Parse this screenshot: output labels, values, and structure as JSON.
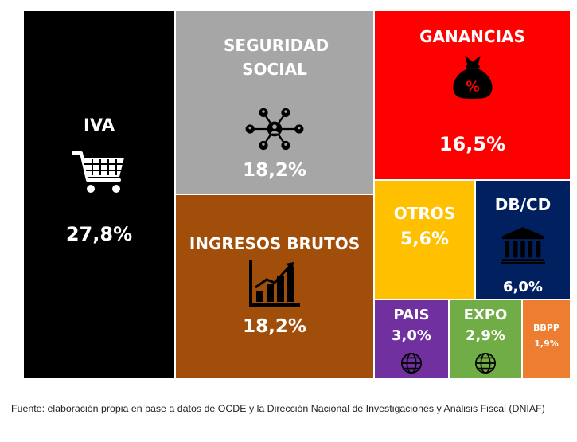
{
  "chart_data": {
    "type": "treemap",
    "items": [
      {
        "label": "IVA",
        "value": 27.8,
        "value_label": "27,8%",
        "color": "#000000",
        "icon": "shopping-cart-icon"
      },
      {
        "label": "SEGURIDAD SOCIAL",
        "value": 18.2,
        "value_label": "18,2%",
        "color": "#a6a6a6",
        "icon": "network-people-icon"
      },
      {
        "label": "GANANCIAS",
        "value": 16.5,
        "value_label": "16,5%",
        "color": "#ff0000",
        "icon": "money-bag-percent-icon"
      },
      {
        "label": "INGRESOS BRUTOS",
        "value": 18.2,
        "value_label": "18,2%",
        "color": "#a14e0b",
        "icon": "growth-bar-chart-icon"
      },
      {
        "label": "OTROS",
        "value": 5.6,
        "value_label": "5,6%",
        "color": "#ffc000",
        "icon": ""
      },
      {
        "label": "DB/CD",
        "value": 6.0,
        "value_label": "6,0%",
        "color": "#002060",
        "icon": "bank-building-icon"
      },
      {
        "label": "PAIS",
        "value": 3.0,
        "value_label": "3,0%",
        "color": "#7030a0",
        "icon": "globe-icon"
      },
      {
        "label": "EXPO",
        "value": 2.9,
        "value_label": "2,9%",
        "color": "#70ad47",
        "icon": "globe-icon"
      },
      {
        "label": "BBPP",
        "value": 1.9,
        "value_label": "1,9%",
        "color": "#ed7d31",
        "icon": ""
      }
    ]
  },
  "source_text": "Fuente: elaboración propia en base a datos de OCDE y la Dirección Nacional de Investigaciones y Análisis Fiscal (DNIAF)"
}
